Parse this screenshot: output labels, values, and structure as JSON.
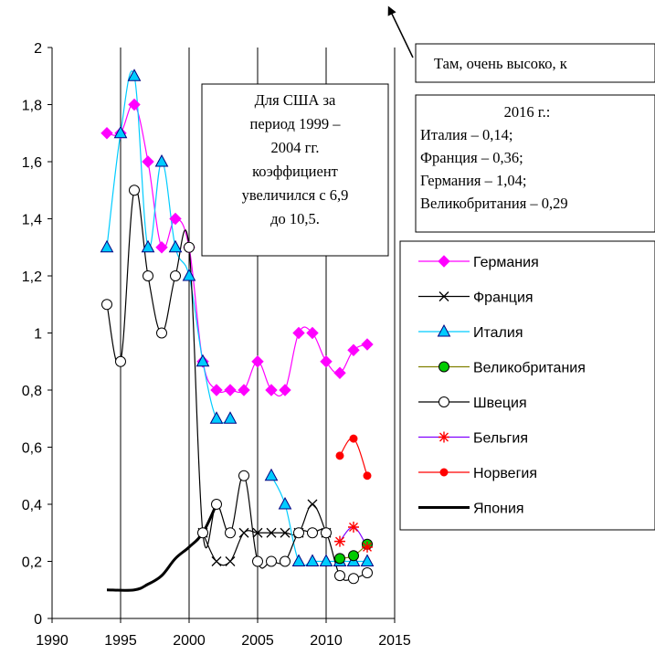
{
  "chart_data": {
    "type": "line",
    "xlim": [
      1990,
      2015
    ],
    "ylim": [
      0,
      2
    ],
    "x_ticks": [
      1990,
      1995,
      2000,
      2005,
      2010,
      2015
    ],
    "y_ticks": [
      "0",
      "0,2",
      "0,4",
      "0,6",
      "0,8",
      "1",
      "1,2",
      "1,4",
      "1,6",
      "1,8",
      "2"
    ],
    "grid": "vertical",
    "legend_placement": "right",
    "series": [
      {
        "name": "Германия",
        "color": "#ff00ff",
        "marker": "diamond",
        "segments": [
          [
            [
              1994,
              1.7
            ],
            [
              1995,
              1.7
            ],
            [
              1996,
              1.8
            ],
            [
              1997,
              1.6
            ],
            [
              1998,
              1.3
            ],
            [
              1999,
              1.4
            ],
            [
              2000,
              1.3
            ],
            [
              2001,
              0.9
            ],
            [
              2002,
              0.8
            ],
            [
              2003,
              0.8
            ],
            [
              2004,
              0.8
            ],
            [
              2005,
              0.9
            ],
            [
              2006,
              0.8
            ],
            [
              2007,
              0.8
            ],
            [
              2008,
              1.0
            ],
            [
              2009,
              1.0
            ],
            [
              2010,
              0.9
            ],
            [
              2011,
              0.86
            ],
            [
              2012,
              0.94
            ],
            [
              2013,
              0.96
            ]
          ]
        ]
      },
      {
        "name": "Франция",
        "color": "#000000",
        "marker": "x",
        "segments": [
          [
            [
              2001,
              0.3
            ],
            [
              2002,
              0.2
            ],
            [
              2003,
              0.2
            ],
            [
              2004,
              0.3
            ],
            [
              2005,
              0.3
            ],
            [
              2006,
              0.3
            ],
            [
              2007,
              0.3
            ],
            [
              2008,
              0.3
            ],
            [
              2009,
              0.4
            ],
            [
              2010,
              0.3
            ]
          ]
        ]
      },
      {
        "name": "Италия",
        "color": "#00ccff",
        "marker": "triangle",
        "segments": [
          [
            [
              1994,
              1.3
            ],
            [
              1995,
              1.7
            ],
            [
              1996,
              1.9
            ],
            [
              1997,
              1.3
            ],
            [
              1998,
              1.6
            ],
            [
              1999,
              1.3
            ],
            [
              2000,
              1.2
            ],
            [
              2001,
              0.9
            ],
            [
              2002,
              0.7
            ],
            [
              2003,
              0.7
            ]
          ],
          [
            [
              2006,
              0.5
            ],
            [
              2007,
              0.4
            ],
            [
              2008,
              0.2
            ],
            [
              2009,
              0.2
            ],
            [
              2010,
              0.2
            ],
            [
              2011,
              0.2
            ],
            [
              2012,
              0.2
            ],
            [
              2013,
              0.2
            ]
          ]
        ]
      },
      {
        "name": "Великобритания",
        "color": "#00cc00",
        "line_color": "#808000",
        "marker": "circle",
        "segments": [
          [
            [
              2011,
              0.21
            ],
            [
              2012,
              0.22
            ],
            [
              2013,
              0.26
            ]
          ]
        ]
      },
      {
        "name": "Швеция",
        "color": "#ffffff",
        "line_color": "#000000",
        "marker": "circle",
        "segments": [
          [
            [
              1994,
              1.1
            ],
            [
              1995,
              0.9
            ],
            [
              1996,
              1.5
            ],
            [
              1997,
              1.2
            ],
            [
              1998,
              1.0
            ],
            [
              1999,
              1.2
            ],
            [
              2000,
              1.3
            ],
            [
              2001,
              0.3
            ],
            [
              2002,
              0.4
            ],
            [
              2003,
              0.3
            ],
            [
              2004,
              0.5
            ],
            [
              2005,
              0.2
            ],
            [
              2006,
              0.2
            ],
            [
              2007,
              0.2
            ],
            [
              2008,
              0.3
            ],
            [
              2009,
              0.3
            ],
            [
              2010,
              0.3
            ],
            [
              2011,
              0.15
            ],
            [
              2012,
              0.14
            ],
            [
              2013,
              0.16
            ]
          ]
        ]
      },
      {
        "name": "Бельгия",
        "color": "#ff0000",
        "line_color": "#8000ff",
        "marker": "star",
        "segments": [
          [
            [
              2011,
              0.27
            ],
            [
              2012,
              0.32
            ],
            [
              2013,
              0.25
            ]
          ]
        ]
      },
      {
        "name": "Норвегия",
        "color": "#ff0000",
        "marker": "dot",
        "segments": [
          [
            [
              2011,
              0.57
            ],
            [
              2012,
              0.63
            ],
            [
              2013,
              0.5
            ]
          ]
        ]
      },
      {
        "name": "Япония",
        "color": "#000000",
        "marker": "none",
        "line_width": "thick",
        "segments": [
          [
            [
              1994,
              0.1
            ],
            [
              1996,
              0.1
            ],
            [
              1997,
              0.12
            ],
            [
              1998,
              0.15
            ],
            [
              1999,
              0.21
            ],
            [
              2000,
              0.25
            ],
            [
              2001,
              0.3
            ],
            [
              2002,
              0.4
            ]
          ]
        ]
      }
    ],
    "annotations": {
      "usa": [
        "Для США за",
        "период  1999 –",
        "2004 гг.",
        "коэффициент",
        "увеличился с 6,9",
        "до 10,5."
      ],
      "high": "Там, очень высоко,  к",
      "year2016": [
        "2016 г.:",
        "Италия – 0,14;",
        "Франция – 0,36;",
        "Германия – 1,04;",
        "Великобритания – 0,29"
      ]
    }
  }
}
